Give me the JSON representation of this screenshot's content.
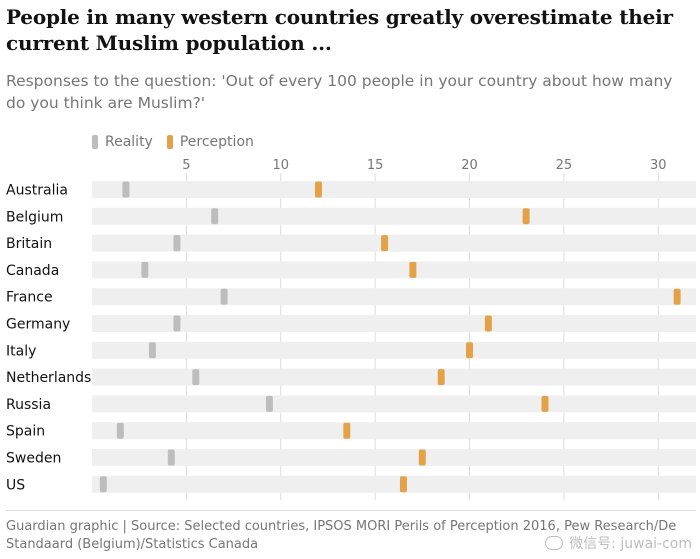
{
  "title": "People in many western countries greatly overestimate their current Muslim population ...",
  "subtitle": "Responses to the question: 'Out of every 100 people in your country about how many do you think are Muslim?'",
  "footer": "Guardian graphic | Source: Selected countries, IPSOS MORI Perils of Perception 2016, Pew Research/De Standaard (Belgium)/Statistics Canada",
  "watermark": "微信号: juwai-com",
  "colors": {
    "reality": "#bdbdbd",
    "perception": "#e3a248",
    "track": "#efefef",
    "grid": "#dcdcdc"
  },
  "chart_data": {
    "type": "dot",
    "xlim": [
      0,
      32
    ],
    "xticks": [
      5,
      10,
      15,
      20,
      25,
      30
    ],
    "grid": true,
    "legend_position": "top-left",
    "categories": [
      "Australia",
      "Belgium",
      "Britain",
      "Canada",
      "France",
      "Germany",
      "Italy",
      "Netherlands",
      "Russia",
      "Spain",
      "Sweden",
      "US"
    ],
    "series": [
      {
        "name": "Reality",
        "values": [
          1.8,
          6.5,
          4.5,
          2.8,
          7.0,
          4.5,
          3.2,
          5.5,
          9.4,
          1.5,
          4.2,
          0.6
        ]
      },
      {
        "name": "Perception",
        "values": [
          12.0,
          23.0,
          15.5,
          17.0,
          31.0,
          21.0,
          20.0,
          18.5,
          24.0,
          13.5,
          17.5,
          16.5
        ]
      }
    ]
  }
}
